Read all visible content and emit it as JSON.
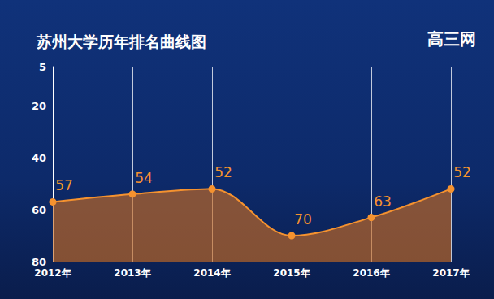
{
  "chart_data": {
    "type": "line",
    "title": "苏州大学历年排名曲线图",
    "annotations": [
      "高三网"
    ],
    "categories": [
      "2012年",
      "2013年",
      "2014年",
      "2015年",
      "2016年",
      "2017年"
    ],
    "values": [
      57,
      54,
      52,
      70,
      63,
      52
    ],
    "color": "#f5922f",
    "ylim": [
      80,
      5
    ],
    "yticks": [
      5,
      20,
      40,
      60,
      80
    ],
    "grid": true,
    "data_labels": true,
    "marker": "circle"
  }
}
